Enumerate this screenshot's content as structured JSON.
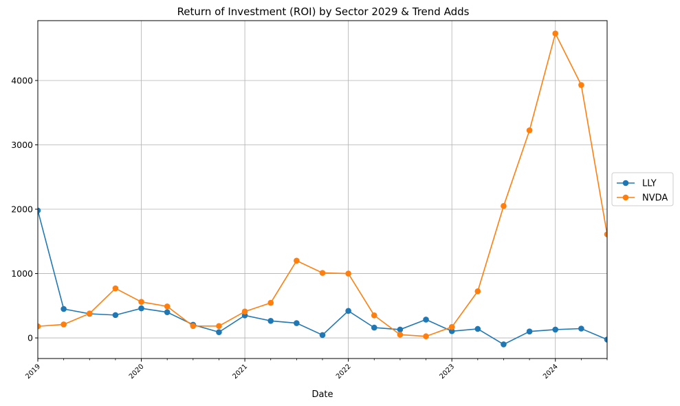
{
  "chart_data": {
    "type": "line",
    "title": "Return of Investment (ROI) by Sector 2029 & Trend Adds",
    "xlabel": "Date",
    "ylabel": "",
    "x": [
      "2019-01",
      "2019-04",
      "2019-07",
      "2019-10",
      "2020-01",
      "2020-04",
      "2020-07",
      "2020-10",
      "2021-01",
      "2021-04",
      "2021-07",
      "2021-10",
      "2022-01",
      "2022-04",
      "2022-07",
      "2022-10",
      "2023-01",
      "2023-04",
      "2023-07",
      "2023-10",
      "2024-01",
      "2024-04",
      "2024-07"
    ],
    "x_tick_labels": [
      {
        "x": "2019-01",
        "label": "2019"
      },
      {
        "x": "2020-01",
        "label": "2020"
      },
      {
        "x": "2021-01",
        "label": "2021"
      },
      {
        "x": "2022-01",
        "label": "2022"
      },
      {
        "x": "2023-01",
        "label": "2023"
      },
      {
        "x": "2024-01",
        "label": "2024"
      }
    ],
    "y_ticks": [
      0,
      1000,
      2000,
      3000,
      4000
    ],
    "ylim": [
      -320,
      4930
    ],
    "grid": true,
    "legend_position": "center-right outside",
    "series": [
      {
        "name": "LLY",
        "color": "#1f77b4",
        "values": [
          1980,
          450,
          375,
          355,
          460,
          400,
          205,
          90,
          350,
          265,
          230,
          45,
          420,
          160,
          130,
          285,
          105,
          140,
          -100,
          100,
          130,
          145,
          -25
        ]
      },
      {
        "name": "NVDA",
        "color": "#ff7f0e",
        "values": [
          180,
          210,
          380,
          770,
          560,
          490,
          185,
          185,
          410,
          545,
          1200,
          1010,
          1000,
          350,
          50,
          25,
          170,
          725,
          2050,
          3225,
          4730,
          3930,
          1610
        ]
      }
    ]
  }
}
